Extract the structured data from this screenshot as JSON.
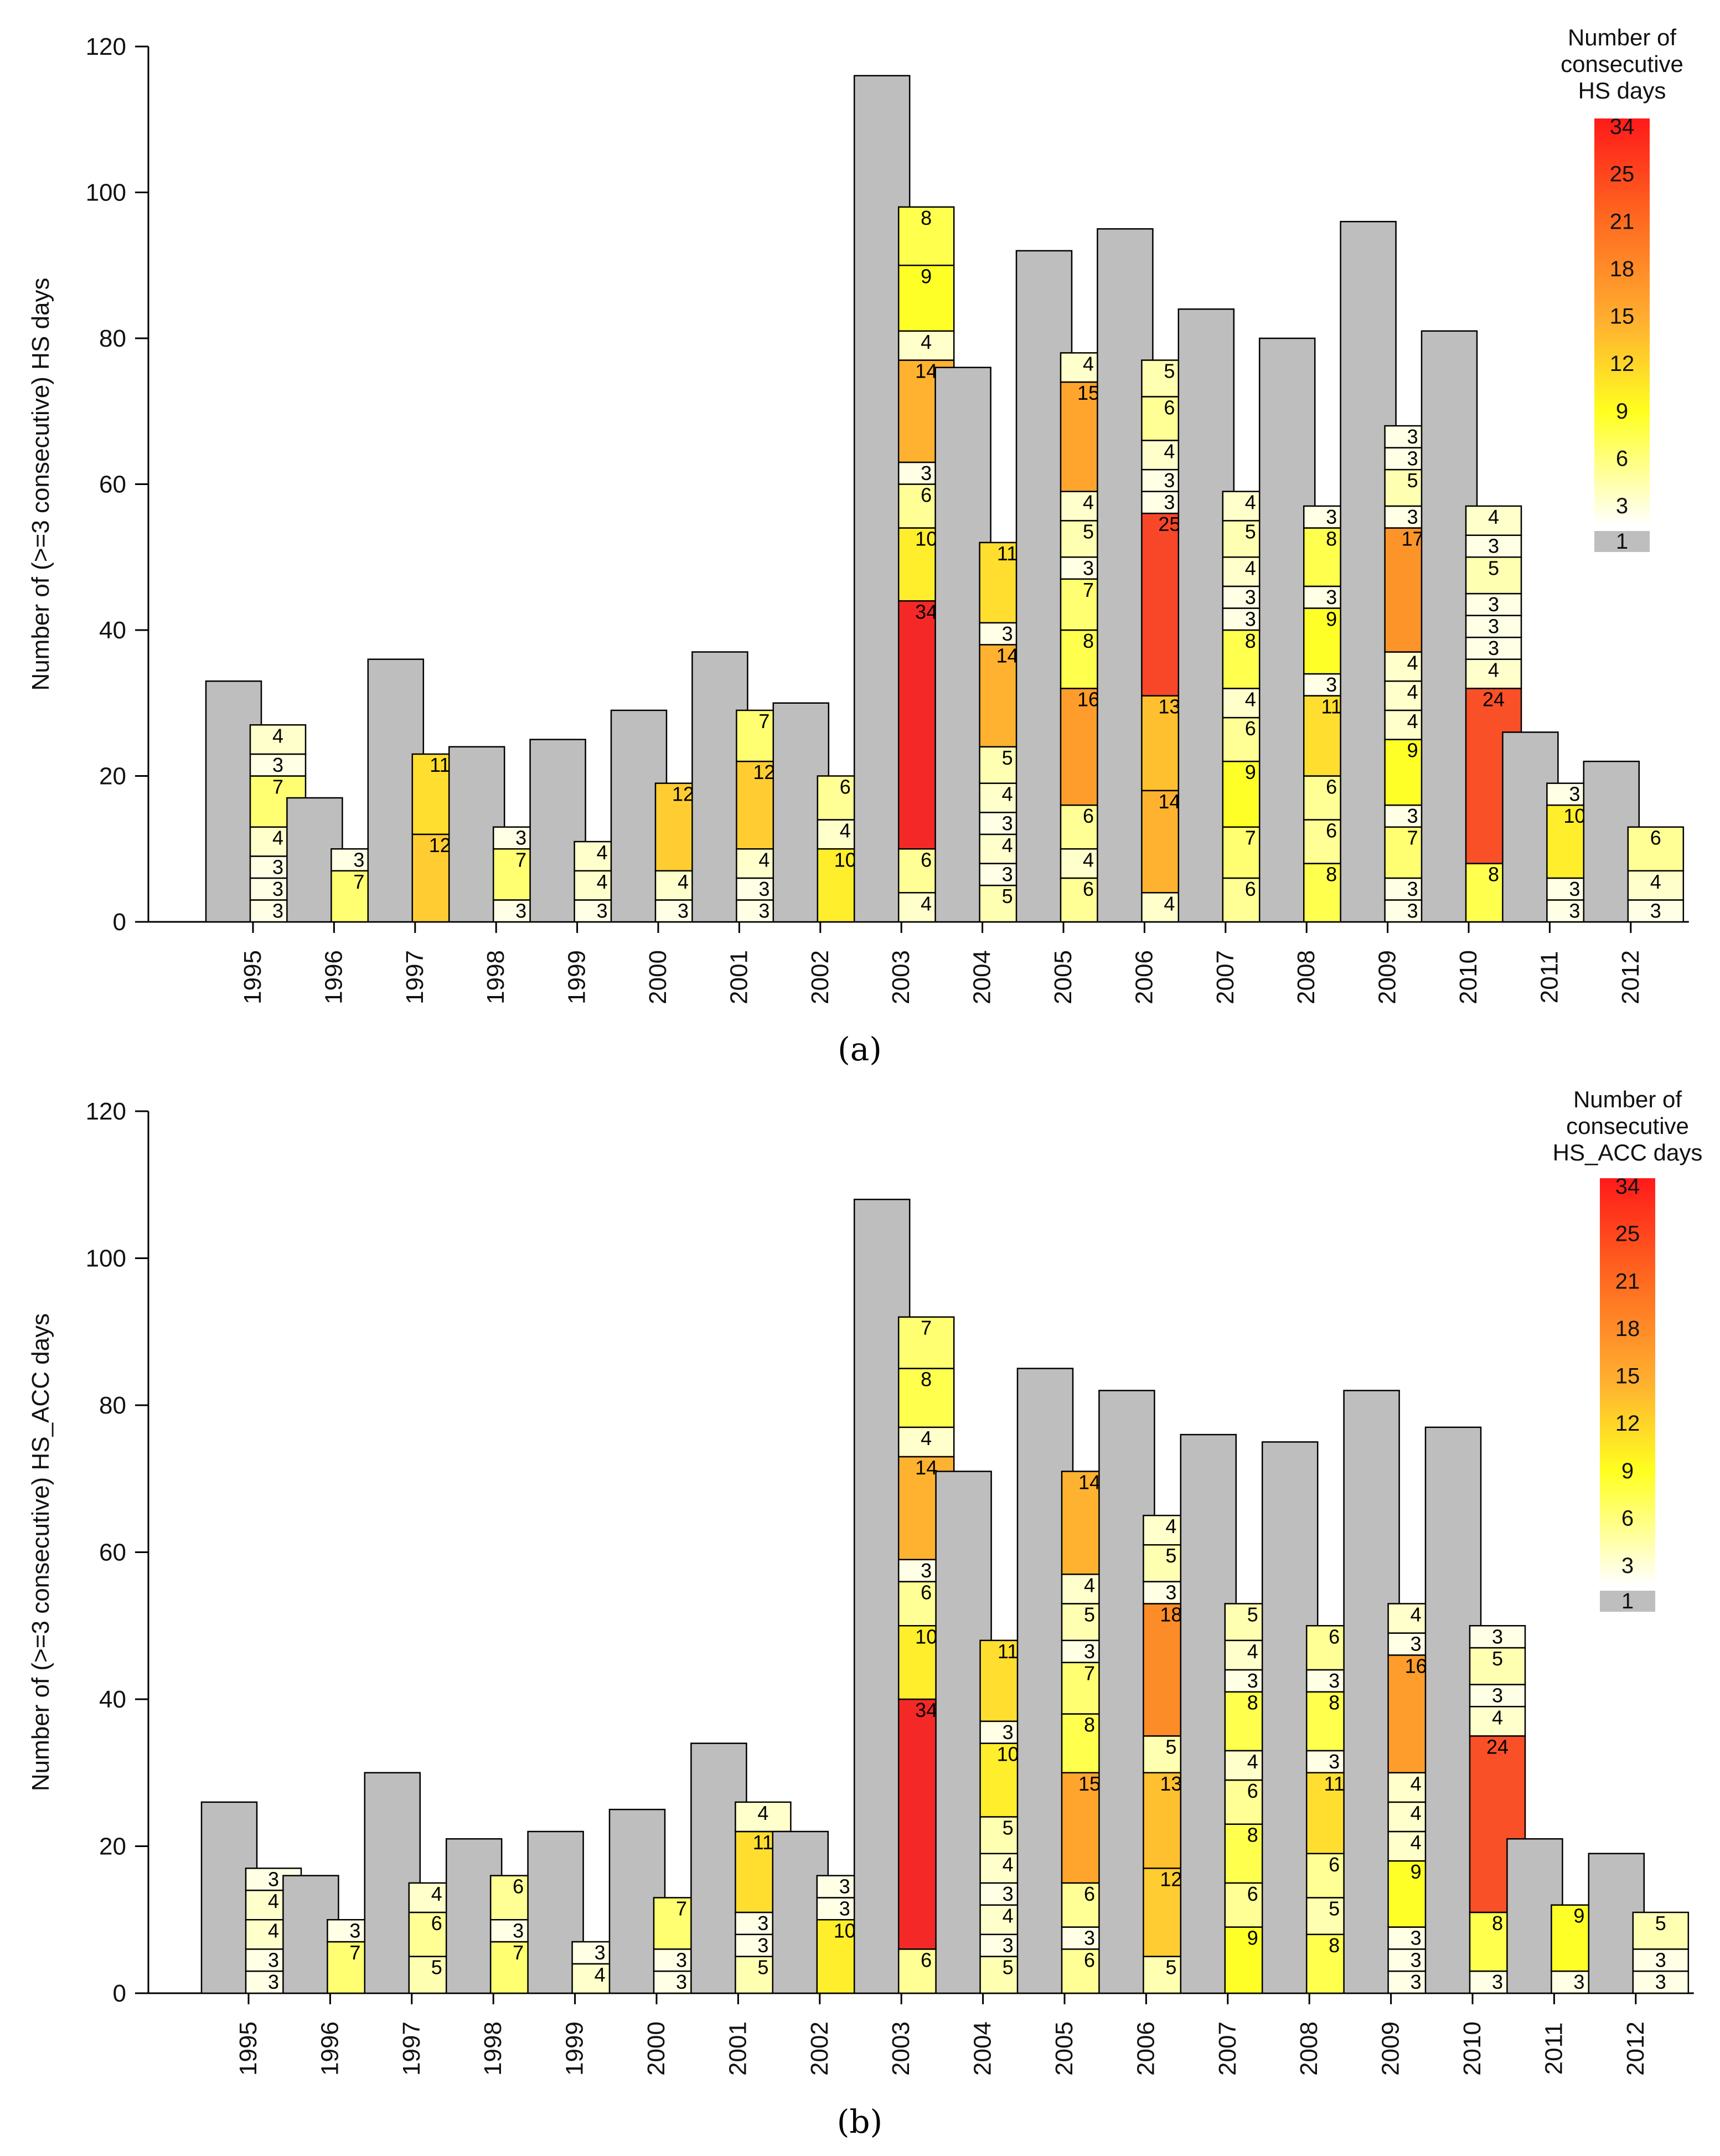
{
  "chart_data": [
    {
      "type": "bar",
      "panel_label": "(a)",
      "ylabel": "Number of (>=3 consecutive) HS days",
      "ylim": [
        0,
        120
      ],
      "yticks": [
        0,
        20,
        40,
        60,
        80,
        100,
        120
      ],
      "grid": false,
      "legend": {
        "title_lines": [
          "Number of",
          "consecutive",
          "HS days"
        ],
        "labels": [
          "34",
          "25",
          "21",
          "18",
          "15",
          "12",
          "9",
          "6",
          "3",
          "1"
        ],
        "placement": "top-right"
      },
      "categories": [
        "1995",
        "1996",
        "1997",
        "1998",
        "1999",
        "2000",
        "2001",
        "2002",
        "2003",
        "2004",
        "2005",
        "2006",
        "2007",
        "2008",
        "2009",
        "2010",
        "2011",
        "2012"
      ],
      "total_days": [
        33,
        17,
        36,
        24,
        25,
        29,
        37,
        30,
        116,
        76,
        92,
        95,
        84,
        80,
        96,
        81,
        26,
        22
      ],
      "stacks": [
        [
          3,
          3,
          3,
          4,
          7,
          3,
          4
        ],
        [
          7,
          3
        ],
        [
          12,
          11
        ],
        [
          3,
          7,
          3
        ],
        [
          3,
          4,
          4
        ],
        [
          3,
          4,
          12
        ],
        [
          3,
          3,
          4,
          12,
          7
        ],
        [
          10,
          4,
          6
        ],
        [
          4,
          6,
          34,
          10,
          6,
          3,
          14,
          4,
          9,
          8
        ],
        [
          5,
          3,
          4,
          3,
          4,
          5,
          14,
          3,
          11
        ],
        [
          6,
          4,
          6,
          16,
          8,
          7,
          3,
          5,
          4,
          15,
          4
        ],
        [
          4,
          14,
          13,
          25,
          3,
          3,
          4,
          6,
          5
        ],
        [
          6,
          7,
          9,
          6,
          4,
          8,
          3,
          3,
          4,
          5,
          4
        ],
        [
          8,
          6,
          6,
          11,
          3,
          9,
          3,
          8,
          3
        ],
        [
          3,
          3,
          7,
          3,
          9,
          4,
          4,
          4,
          17,
          3,
          5,
          3,
          3
        ],
        [
          8,
          24,
          4,
          3,
          3,
          3,
          5,
          3,
          4
        ],
        [
          3,
          3,
          10,
          3
        ],
        [
          3,
          4,
          6
        ]
      ]
    },
    {
      "type": "bar",
      "panel_label": "(b)",
      "ylabel": "Number of (>=3 consecutive) HS_ACC days",
      "ylim": [
        0,
        120
      ],
      "yticks": [
        0,
        20,
        40,
        60,
        80,
        100,
        120
      ],
      "grid": false,
      "legend": {
        "title_lines": [
          "Number of",
          "consecutive",
          "HS_ACC days"
        ],
        "labels": [
          "34",
          "25",
          "21",
          "18",
          "15",
          "12",
          "9",
          "6",
          "3",
          "1"
        ],
        "placement": "top-right"
      },
      "categories": [
        "1995",
        "1996",
        "1997",
        "1998",
        "1999",
        "2000",
        "2001",
        "2002",
        "2003",
        "2004",
        "2005",
        "2006",
        "2007",
        "2008",
        "2009",
        "2010",
        "2011",
        "2012"
      ],
      "total_days": [
        26,
        16,
        30,
        21,
        22,
        25,
        34,
        22,
        108,
        71,
        85,
        82,
        76,
        75,
        82,
        77,
        21,
        19
      ],
      "stacks": [
        [
          3,
          3,
          4,
          4,
          3
        ],
        [
          7,
          3
        ],
        [
          5,
          6,
          4
        ],
        [
          7,
          3,
          6
        ],
        [
          4,
          3
        ],
        [
          3,
          3,
          7
        ],
        [
          5,
          3,
          3,
          11,
          4
        ],
        [
          10,
          3,
          3
        ],
        [
          6,
          34,
          10,
          6,
          3,
          14,
          4,
          8,
          7
        ],
        [
          5,
          3,
          4,
          3,
          4,
          5,
          10,
          3,
          11
        ],
        [
          6,
          3,
          6,
          15,
          8,
          7,
          3,
          5,
          4,
          14
        ],
        [
          5,
          12,
          13,
          5,
          18,
          3,
          5,
          4
        ],
        [
          9,
          6,
          8,
          6,
          4,
          8,
          3,
          4,
          5
        ],
        [
          8,
          5,
          6,
          11,
          3,
          8,
          3,
          6
        ],
        [
          3,
          3,
          3,
          9,
          4,
          4,
          4,
          16,
          3,
          4
        ],
        [
          3,
          8,
          24,
          4,
          3,
          5,
          3
        ],
        [
          3,
          9
        ],
        [
          3,
          3,
          5
        ]
      ]
    }
  ]
}
